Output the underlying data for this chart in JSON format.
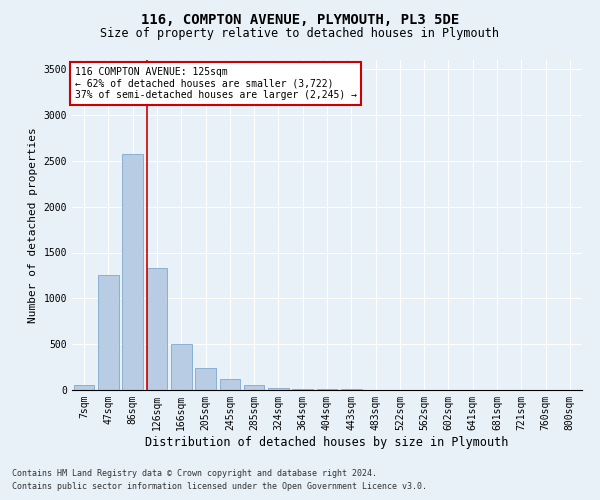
{
  "title": "116, COMPTON AVENUE, PLYMOUTH, PL3 5DE",
  "subtitle": "Size of property relative to detached houses in Plymouth",
  "xlabel": "Distribution of detached houses by size in Plymouth",
  "ylabel": "Number of detached properties",
  "bar_color": "#b8cce4",
  "bar_edge_color": "#7fa8d0",
  "categories": [
    "7sqm",
    "47sqm",
    "86sqm",
    "126sqm",
    "166sqm",
    "205sqm",
    "245sqm",
    "285sqm",
    "324sqm",
    "364sqm",
    "404sqm",
    "443sqm",
    "483sqm",
    "522sqm",
    "562sqm",
    "602sqm",
    "641sqm",
    "681sqm",
    "721sqm",
    "760sqm",
    "800sqm"
  ],
  "values": [
    55,
    1250,
    2580,
    1330,
    500,
    240,
    120,
    55,
    25,
    15,
    12,
    8,
    5,
    3,
    2,
    1,
    1,
    0,
    0,
    0,
    0
  ],
  "ylim": [
    0,
    3600
  ],
  "yticks": [
    0,
    500,
    1000,
    1500,
    2000,
    2500,
    3000,
    3500
  ],
  "property_line_x": 2.6,
  "annotation_text": "116 COMPTON AVENUE: 125sqm\n← 62% of detached houses are smaller (3,722)\n37% of semi-detached houses are larger (2,245) →",
  "annotation_box_color": "#ffffff",
  "annotation_border_color": "#cc0000",
  "vline_color": "#cc0000",
  "footer_line1": "Contains HM Land Registry data © Crown copyright and database right 2024.",
  "footer_line2": "Contains public sector information licensed under the Open Government Licence v3.0.",
  "background_color": "#e8f0f8",
  "plot_background_color": "#e8f0f8",
  "grid_color": "#ffffff",
  "title_fontsize": 10,
  "subtitle_fontsize": 8.5,
  "ylabel_fontsize": 8,
  "xlabel_fontsize": 8.5,
  "tick_fontsize": 7,
  "annotation_fontsize": 7,
  "footer_fontsize": 6
}
